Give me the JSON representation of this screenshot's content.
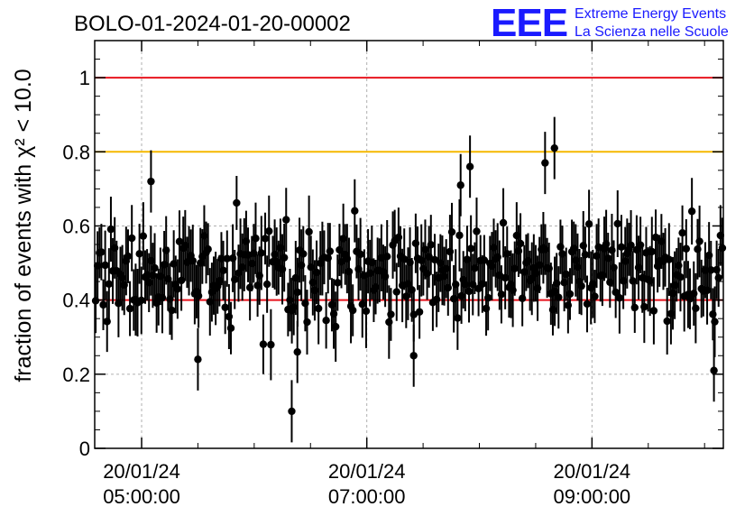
{
  "chart_data": {
    "type": "scatter",
    "title": "BOLO-01-2024-01-20-00002",
    "ylabel": "fraction of events with χ² < 10.0",
    "ylim": [
      0,
      1.1
    ],
    "y_ticks": [
      {
        "value": 0,
        "label": "0"
      },
      {
        "value": 0.2,
        "label": "0.2"
      },
      {
        "value": 0.4,
        "label": "0.4"
      },
      {
        "value": 0.6,
        "label": "0.6"
      },
      {
        "value": 0.8,
        "label": "0.8"
      },
      {
        "value": 1,
        "label": "1"
      }
    ],
    "x_range": [
      "04:35",
      "10:10"
    ],
    "x_ticks": [
      {
        "time": "05:00",
        "date_label": "20/01/24",
        "time_label": "05:00:00"
      },
      {
        "time": "07:00",
        "date_label": "20/01/24",
        "time_label": "07:00:00"
      },
      {
        "time": "09:00",
        "date_label": "20/01/24",
        "time_label": "09:00:00"
      }
    ],
    "reference_lines": [
      {
        "y": 1.0,
        "color": "#e8141e"
      },
      {
        "y": 0.8,
        "color": "#f5b800"
      },
      {
        "y": 0.4,
        "color": "#e8141e"
      }
    ],
    "grid": true,
    "grid_style": "dashed",
    "marker_color": "#000000",
    "outliers": [
      {
        "time": "05:05",
        "y": 0.72
      },
      {
        "time": "06:20",
        "y": 0.1
      },
      {
        "time": "06:23",
        "y": 0.26
      },
      {
        "time": "07:50",
        "y": 0.71
      },
      {
        "time": "07:55",
        "y": 0.76
      },
      {
        "time": "08:35",
        "y": 0.77
      },
      {
        "time": "08:40",
        "y": 0.81
      },
      {
        "time": "07:25",
        "y": 0.25
      },
      {
        "time": "05:30",
        "y": 0.24
      },
      {
        "time": "10:05",
        "y": 0.21
      }
    ],
    "bulk": {
      "count": 330,
      "mean": 0.47,
      "spread": 0.09,
      "min": 0.22,
      "max": 0.7,
      "error": 0.08
    }
  },
  "logo": {
    "mark": "EEE",
    "line1": "Extreme Energy Events",
    "line2": "La Scienza nelle Scuole"
  },
  "colors": {
    "logo": "#1a1aff",
    "grid": "#b0b0b0"
  }
}
